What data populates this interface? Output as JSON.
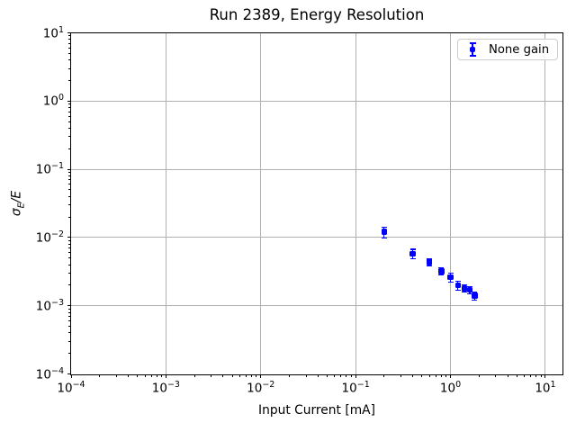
{
  "chart_data": {
    "type": "scatter",
    "title": "Run 2389, Energy Resolution",
    "xlabel": "Input Current [mA]",
    "ylabel": "σ_E/E",
    "ylabel_parts": {
      "sigma": "σ",
      "sub": "E",
      "rest": "/E"
    },
    "x_scale": "log",
    "y_scale": "log",
    "xlim": [
      0.0001,
      15
    ],
    "ylim": [
      0.0001,
      10
    ],
    "grid": true,
    "x_tick_exponents": [
      -4,
      -3,
      -2,
      -1,
      0,
      1
    ],
    "y_tick_exponents": [
      -4,
      -3,
      -2,
      -1,
      0,
      1
    ],
    "tick_label_base": "10",
    "legend": {
      "position": "upper right",
      "label": "None gain"
    },
    "series": [
      {
        "name": "None gain",
        "color": "#0000ff",
        "marker": "square",
        "x": [
          0.2,
          0.4,
          0.6,
          0.8,
          1.0,
          1.2,
          1.4,
          1.6,
          1.8
        ],
        "y": [
          0.0121,
          0.0058,
          0.0043,
          0.0032,
          0.0026,
          0.002,
          0.0018,
          0.0017,
          0.0014
        ],
        "yerr": [
          0.0022,
          0.0009,
          0.0005,
          0.0004,
          0.0004,
          0.0003,
          0.0002,
          0.0002,
          0.0002
        ]
      }
    ],
    "colors": {
      "series": "#0000ff",
      "grid": "#b0b0b0",
      "spine": "#000000",
      "legend_border": "#cccccc",
      "text": "#000000"
    }
  }
}
